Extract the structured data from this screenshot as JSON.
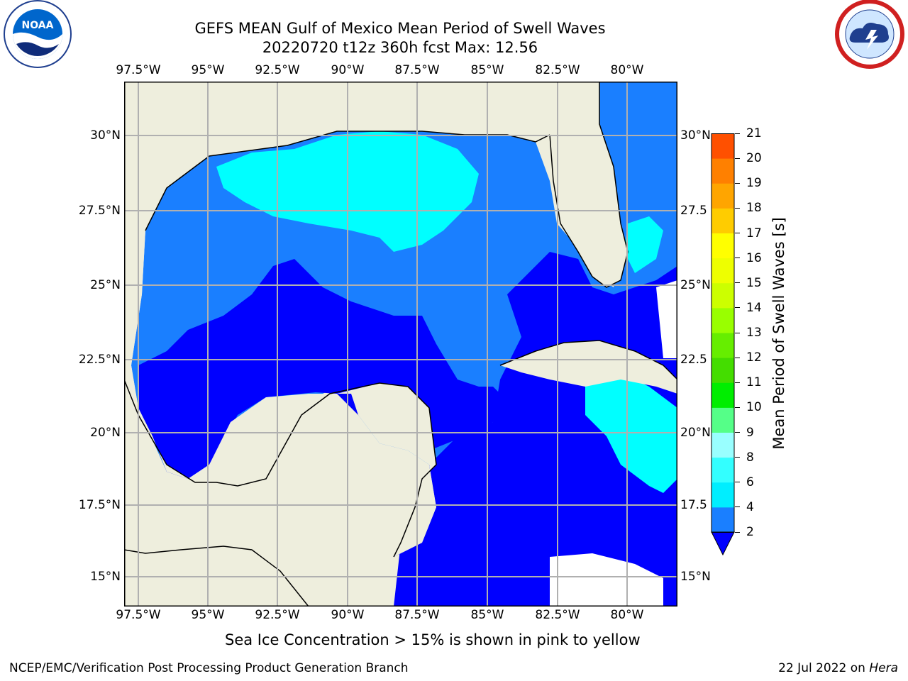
{
  "header": {
    "title_line1": "GEFS MEAN Gulf of Mexico Mean Period of Swell Waves",
    "title_line2": "20220720 t12z 360h fcst   Max: 12.56"
  },
  "logos": {
    "left": "noaa-logo",
    "right": "national-weather-service-logo"
  },
  "map": {
    "lon_labels": [
      "97.5°W",
      "95°W",
      "92.5°W",
      "90°W",
      "87.5°W",
      "85°W",
      "82.5°W",
      "80°W"
    ],
    "lat_labels_left": [
      "30°N",
      "27.5°N",
      "25°N",
      "22.5°N",
      "20°N",
      "17.5°N",
      "15°N"
    ],
    "lat_labels_right": [
      "30°N",
      "27.5",
      "25°N",
      "22.5",
      "20°N",
      "17.5",
      "15°N"
    ],
    "colors": {
      "land": "#eeeedd",
      "ocean_low": "#0000ff",
      "ocean_2_4": "#1a7fff",
      "ocean_4_6": "#00ffff",
      "ocean_high": "#66ff00",
      "ocean_mid": "#ccff00",
      "no_data": "#ffffff",
      "grid": "#b0b0b0"
    }
  },
  "colorbar": {
    "label": "Mean Period of Swell Waves [s]",
    "ticks": [
      "2",
      "4",
      "6",
      "8",
      "9",
      "10",
      "11",
      "12",
      "13",
      "14",
      "15",
      "16",
      "17",
      "18",
      "19",
      "20",
      "21"
    ],
    "colors": [
      "#1a7fff",
      "#00eeff",
      "#33ffff",
      "#99ffff",
      "#55ff88",
      "#00ee00",
      "#44dd00",
      "#66ee00",
      "#99ff00",
      "#ccff00",
      "#eeff00",
      "#ffff00",
      "#ffcc00",
      "#ffa500",
      "#ff8000",
      "#ff5000",
      "#ff2000",
      "#ff0000"
    ],
    "extend_color": "#0000ff"
  },
  "note": "Sea Ice Concentration > 15% is shown in pink to yellow",
  "footer": {
    "left": "NCEP/EMC/Verification Post Processing Product Generation Branch",
    "right_date": "22 Jul 2022 on",
    "right_host": "Hera"
  }
}
